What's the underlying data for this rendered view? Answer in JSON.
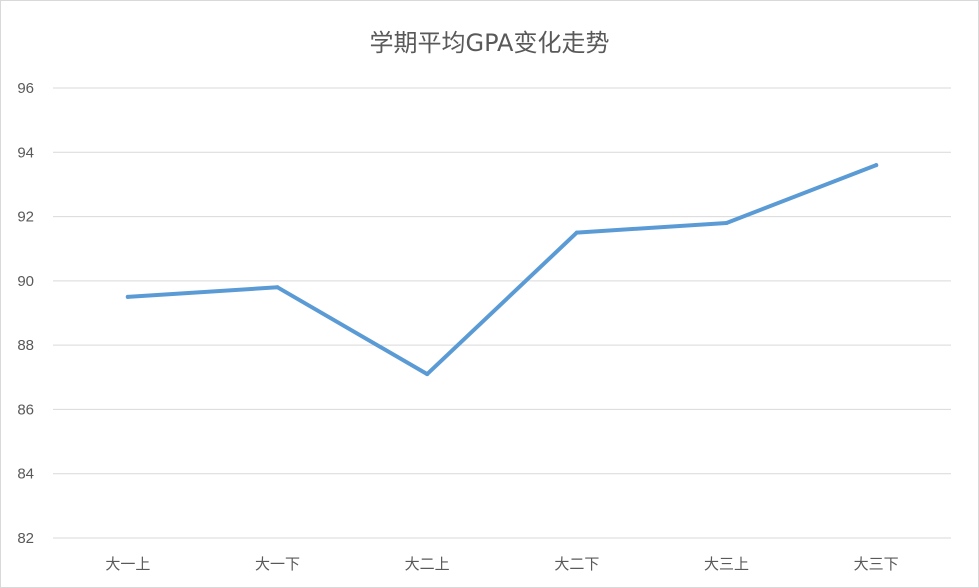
{
  "chart_data": {
    "type": "line",
    "title": "学期平均GPA变化走势",
    "xlabel": "",
    "ylabel": "",
    "categories": [
      "大一上",
      "大一下",
      "大二上",
      "大二下",
      "大三上",
      "大三下"
    ],
    "series": [
      {
        "values": [
          89.5,
          89.8,
          87.1,
          91.5,
          91.8,
          93.6
        ],
        "color": "#5b9bd5"
      }
    ],
    "ylim": [
      82,
      96
    ],
    "yticks": [
      82,
      84,
      86,
      88,
      90,
      92,
      94,
      96
    ],
    "grid": true,
    "legend": "none",
    "colors": {
      "grid": "#d9d9d9",
      "text": "#595959",
      "line": "#5b9bd5"
    }
  }
}
